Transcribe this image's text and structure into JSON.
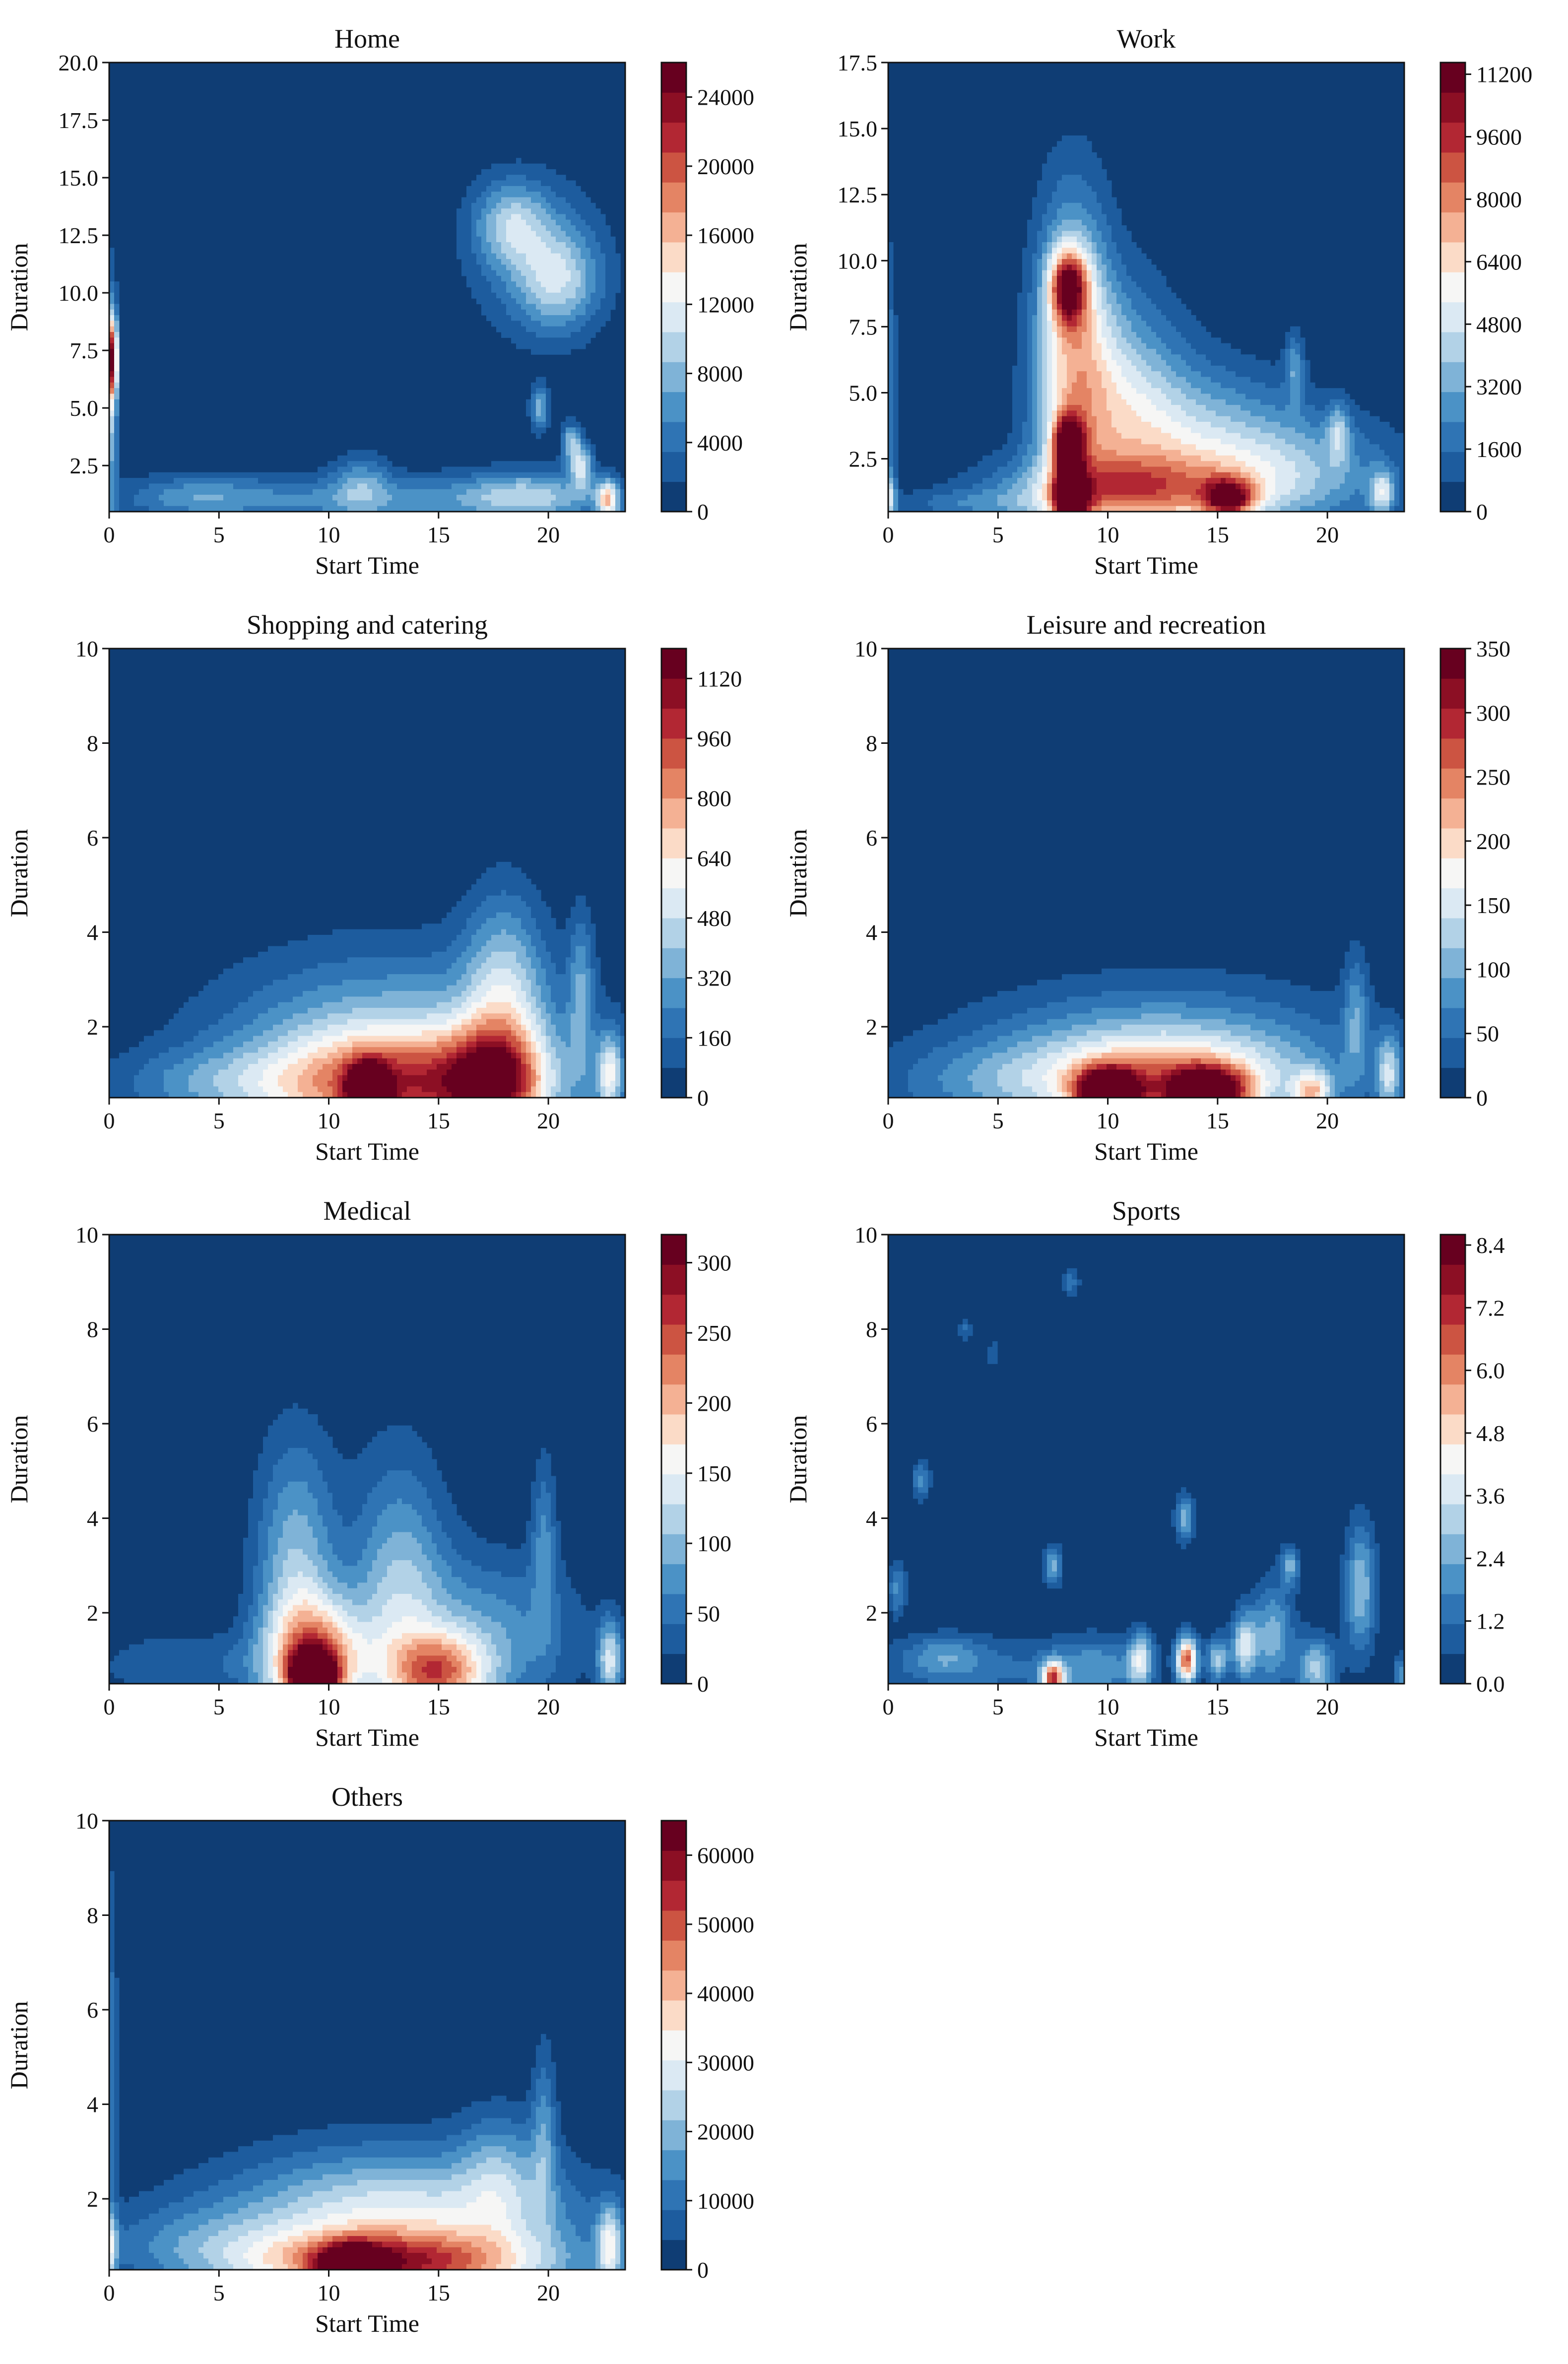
{
  "palette": [
    "#0f3d74",
    "#1d5c9e",
    "#2f74b4",
    "#4b92c6",
    "#7fb3d7",
    "#b2d2e7",
    "#dbe9f3",
    "#f6f6f5",
    "#fbdbc7",
    "#f4b194",
    "#e48464",
    "#cc5442",
    "#b22733",
    "#8c0f24",
    "#67001f"
  ],
  "chart_data": [
    {
      "type": "heatmap",
      "title": "Home",
      "xlabel": "Start Time",
      "ylabel": "Duration",
      "xlim": [
        0,
        23.5
      ],
      "ylim": [
        0.5,
        20
      ],
      "xticks": [
        "0",
        "5",
        "10",
        "15",
        "20"
      ],
      "yticks": [
        "2.5",
        "5.0",
        "7.5",
        "10.0",
        "12.5",
        "15.0",
        "17.5",
        "20.0"
      ],
      "cbar_ticks": [
        "0",
        "4000",
        "8000",
        "12000",
        "16000",
        "20000",
        "24000"
      ],
      "cbar_max": 26000,
      "blobs": [
        {
          "x": 0.1,
          "y": 7.2,
          "sx": 0.2,
          "sy": 1.2,
          "a": 0.68
        },
        {
          "x": 0.1,
          "y": 5.5,
          "sx": 0.2,
          "sy": 3.5,
          "a": 0.35
        },
        {
          "x": 12,
          "y": 1.0,
          "sx": 8,
          "sy": 0.8,
          "a": 0.22
        },
        {
          "x": 4,
          "y": 1.2,
          "sx": 2,
          "sy": 0.6,
          "a": 0.14
        },
        {
          "x": 11.5,
          "y": 1.8,
          "sx": 0.9,
          "sy": 1.0,
          "a": 0.18
        },
        {
          "x": 19,
          "y": 1.2,
          "sx": 2,
          "sy": 0.8,
          "a": 0.25
        },
        {
          "x": 18.3,
          "y": 13.0,
          "sx": 1.2,
          "sy": 1.3,
          "a": 0.28
        },
        {
          "x": 20.5,
          "y": 10.5,
          "sx": 1.3,
          "sy": 1.5,
          "a": 0.28
        },
        {
          "x": 19.5,
          "y": 11.5,
          "sx": 2.2,
          "sy": 2.5,
          "a": 0.17
        },
        {
          "x": 21.5,
          "y": 2.5,
          "sx": 0.35,
          "sy": 0.7,
          "a": 0.4
        },
        {
          "x": 22.7,
          "y": 1.0,
          "sx": 0.35,
          "sy": 0.6,
          "a": 0.5
        },
        {
          "x": 19.6,
          "y": 5.0,
          "sx": 0.3,
          "sy": 0.7,
          "a": 0.3
        },
        {
          "x": 21.0,
          "y": 3.5,
          "sx": 0.3,
          "sy": 0.6,
          "a": 0.3
        }
      ]
    },
    {
      "type": "heatmap",
      "title": "Work",
      "xlabel": "Start Time",
      "ylabel": "Duration",
      "xlim": [
        0,
        23.5
      ],
      "ylim": [
        0.5,
        17.5
      ],
      "xticks": [
        "0",
        "5",
        "10",
        "15",
        "20"
      ],
      "yticks": [
        "2.5",
        "5.0",
        "7.5",
        "10.0",
        "12.5",
        "15.0",
        "17.5"
      ],
      "cbar_ticks": [
        "0",
        "1600",
        "3200",
        "4800",
        "6400",
        "8000",
        "9600",
        "11200"
      ],
      "cbar_max": 11500,
      "blobs": [
        {
          "x": 8.3,
          "y": 1.0,
          "sx": 0.5,
          "sy": 0.6,
          "a": 0.95
        },
        {
          "x": 8.2,
          "y": 3.0,
          "sx": 0.5,
          "sy": 0.8,
          "a": 0.75
        },
        {
          "x": 8.2,
          "y": 9.0,
          "sx": 0.6,
          "sy": 1.0,
          "a": 0.65
        },
        {
          "x": 8.4,
          "y": 7.0,
          "sx": 1.2,
          "sy": 4.0,
          "a": 0.45
        },
        {
          "x": 11,
          "y": 1.2,
          "sx": 4,
          "sy": 1.0,
          "a": 0.5
        },
        {
          "x": 15.5,
          "y": 1.0,
          "sx": 0.8,
          "sy": 0.5,
          "a": 0.6
        },
        {
          "x": 13.5,
          "y": 3.2,
          "sx": 3.5,
          "sy": 2.0,
          "a": 0.32
        },
        {
          "x": 10.5,
          "y": 5.0,
          "sx": 2,
          "sy": 3,
          "a": 0.3
        },
        {
          "x": 18.5,
          "y": 2.0,
          "sx": 3.5,
          "sy": 1.5,
          "a": 0.25
        },
        {
          "x": 3.5,
          "y": 0.8,
          "sx": 2.5,
          "sy": 0.4,
          "a": 0.13
        },
        {
          "x": 0.1,
          "y": 1.0,
          "sx": 0.2,
          "sy": 0.6,
          "a": 0.3
        },
        {
          "x": 0.1,
          "y": 5.0,
          "sx": 0.2,
          "sy": 4.0,
          "a": 0.18
        },
        {
          "x": 22.5,
          "y": 1.2,
          "sx": 0.4,
          "sy": 0.6,
          "a": 0.35
        },
        {
          "x": 20.5,
          "y": 3.5,
          "sx": 0.35,
          "sy": 0.8,
          "a": 0.25
        },
        {
          "x": 18.5,
          "y": 6.0,
          "sx": 0.3,
          "sy": 0.9,
          "a": 0.22
        }
      ]
    },
    {
      "type": "heatmap",
      "title": "Shopping and catering",
      "xlabel": "Start Time",
      "ylabel": "Duration",
      "xlim": [
        0,
        23.5
      ],
      "ylim": [
        0.5,
        10
      ],
      "xticks": [
        "0",
        "5",
        "10",
        "15",
        "20"
      ],
      "yticks": [
        "2",
        "4",
        "6",
        "8",
        "10"
      ],
      "cbar_ticks": [
        "0",
        "160",
        "320",
        "480",
        "640",
        "800",
        "960",
        "1120"
      ],
      "cbar_max": 1200,
      "blobs": [
        {
          "x": 11.8,
          "y": 0.6,
          "sx": 0.6,
          "sy": 0.4,
          "a": 0.92
        },
        {
          "x": 13,
          "y": 0.7,
          "sx": 4.5,
          "sy": 0.8,
          "a": 0.58
        },
        {
          "x": 17.5,
          "y": 0.8,
          "sx": 1.5,
          "sy": 0.8,
          "a": 0.5
        },
        {
          "x": 13,
          "y": 1.6,
          "sx": 5.5,
          "sy": 1.4,
          "a": 0.33
        },
        {
          "x": 18,
          "y": 2.8,
          "sx": 1.3,
          "sy": 1.5,
          "a": 0.3
        },
        {
          "x": 4,
          "y": 0.8,
          "sx": 3,
          "sy": 0.5,
          "a": 0.14
        },
        {
          "x": 22.8,
          "y": 1.0,
          "sx": 0.4,
          "sy": 0.6,
          "a": 0.4
        },
        {
          "x": 21.5,
          "y": 2.8,
          "sx": 0.4,
          "sy": 1.2,
          "a": 0.22
        }
      ]
    },
    {
      "type": "heatmap",
      "title": "Leisure and recreation",
      "xlabel": "Start Time",
      "ylabel": "Duration",
      "xlim": [
        0,
        23.5
      ],
      "ylim": [
        0.5,
        10
      ],
      "xticks": [
        "0",
        "5",
        "10",
        "15",
        "20"
      ],
      "yticks": [
        "2",
        "4",
        "6",
        "8",
        "10"
      ],
      "cbar_ticks": [
        "0",
        "50",
        "100",
        "150",
        "200",
        "250",
        "300",
        "350"
      ],
      "cbar_max": 350,
      "blobs": [
        {
          "x": 10,
          "y": 0.6,
          "sx": 1.0,
          "sy": 0.35,
          "a": 0.9
        },
        {
          "x": 14.5,
          "y": 0.6,
          "sx": 1.2,
          "sy": 0.35,
          "a": 0.88
        },
        {
          "x": 12.5,
          "y": 0.8,
          "sx": 4.5,
          "sy": 0.7,
          "a": 0.5
        },
        {
          "x": 12.5,
          "y": 1.6,
          "sx": 6,
          "sy": 1.0,
          "a": 0.25
        },
        {
          "x": 19.3,
          "y": 0.6,
          "sx": 0.6,
          "sy": 0.3,
          "a": 0.42
        },
        {
          "x": 4,
          "y": 0.8,
          "sx": 3.5,
          "sy": 0.6,
          "a": 0.13
        },
        {
          "x": 22.8,
          "y": 1.0,
          "sx": 0.4,
          "sy": 0.6,
          "a": 0.35
        },
        {
          "x": 21.3,
          "y": 2.3,
          "sx": 0.4,
          "sy": 1.0,
          "a": 0.2
        }
      ]
    },
    {
      "type": "heatmap",
      "title": "Medical",
      "xlabel": "Start Time",
      "ylabel": "Duration",
      "xlim": [
        0,
        23.5
      ],
      "ylim": [
        0.5,
        10
      ],
      "xticks": [
        "0",
        "5",
        "10",
        "15",
        "20"
      ],
      "yticks": [
        "2",
        "4",
        "6",
        "8",
        "10"
      ],
      "cbar_ticks": [
        "0",
        "50",
        "100",
        "150",
        "200",
        "250",
        "300"
      ],
      "cbar_max": 320,
      "blobs": [
        {
          "x": 9.3,
          "y": 0.6,
          "sx": 0.7,
          "sy": 0.4,
          "a": 0.95
        },
        {
          "x": 9.5,
          "y": 1.0,
          "sx": 1.6,
          "sy": 0.9,
          "a": 0.6
        },
        {
          "x": 15,
          "y": 0.7,
          "sx": 1.6,
          "sy": 0.6,
          "a": 0.55
        },
        {
          "x": 8.5,
          "y": 2.8,
          "sx": 1.3,
          "sy": 2.0,
          "a": 0.33
        },
        {
          "x": 13.2,
          "y": 2.5,
          "sx": 1.5,
          "sy": 2.0,
          "a": 0.3
        },
        {
          "x": 17,
          "y": 1.5,
          "sx": 3,
          "sy": 1.2,
          "a": 0.25
        },
        {
          "x": 3.5,
          "y": 0.9,
          "sx": 3,
          "sy": 0.5,
          "a": 0.13
        },
        {
          "x": 22.8,
          "y": 1.0,
          "sx": 0.4,
          "sy": 0.6,
          "a": 0.4
        },
        {
          "x": 19.8,
          "y": 3.5,
          "sx": 0.4,
          "sy": 1.3,
          "a": 0.2
        }
      ]
    },
    {
      "type": "heatmap",
      "title": "Sports",
      "xlabel": "Start Time",
      "ylabel": "Duration",
      "xlim": [
        0,
        23.5
      ],
      "ylim": [
        0.5,
        10
      ],
      "xticks": [
        "0",
        "5",
        "10",
        "15",
        "20"
      ],
      "yticks": [
        "2",
        "4",
        "6",
        "8",
        "10"
      ],
      "cbar_ticks": [
        "0.0",
        "1.2",
        "2.4",
        "3.6",
        "4.8",
        "6.0",
        "7.2",
        "8.4"
      ],
      "cbar_max": 8.6,
      "blobs": [
        {
          "x": 13.6,
          "y": 1.0,
          "sx": 0.35,
          "sy": 0.35,
          "a": 0.75
        },
        {
          "x": 7.5,
          "y": 0.6,
          "sx": 0.35,
          "sy": 0.25,
          "a": 0.7
        },
        {
          "x": 11.5,
          "y": 1.0,
          "sx": 0.4,
          "sy": 0.4,
          "a": 0.4
        },
        {
          "x": 16.2,
          "y": 1.3,
          "sx": 0.4,
          "sy": 0.5,
          "a": 0.4
        },
        {
          "x": 15,
          "y": 1.0,
          "sx": 0.35,
          "sy": 0.35,
          "a": 0.35
        },
        {
          "x": 19.5,
          "y": 0.8,
          "sx": 0.6,
          "sy": 0.5,
          "a": 0.35
        },
        {
          "x": 21.5,
          "y": 2.5,
          "sx": 0.5,
          "sy": 1.0,
          "a": 0.33
        },
        {
          "x": 17.5,
          "y": 1.5,
          "sx": 0.7,
          "sy": 0.8,
          "a": 0.3
        },
        {
          "x": 18.3,
          "y": 3.0,
          "sx": 0.3,
          "sy": 0.3,
          "a": 0.28
        },
        {
          "x": 13.5,
          "y": 4.0,
          "sx": 0.3,
          "sy": 0.35,
          "a": 0.3
        },
        {
          "x": 7.5,
          "y": 3.0,
          "sx": 0.3,
          "sy": 0.3,
          "a": 0.3
        },
        {
          "x": 8.3,
          "y": 9.0,
          "sx": 0.3,
          "sy": 0.2,
          "a": 0.18
        },
        {
          "x": 1.5,
          "y": 4.8,
          "sx": 0.3,
          "sy": 0.3,
          "a": 0.22
        },
        {
          "x": 3.5,
          "y": 8.0,
          "sx": 0.2,
          "sy": 0.2,
          "a": 0.14
        },
        {
          "x": 4.8,
          "y": 7.5,
          "sx": 0.2,
          "sy": 0.2,
          "a": 0.14
        },
        {
          "x": 0.4,
          "y": 2.5,
          "sx": 0.3,
          "sy": 0.4,
          "a": 0.22
        },
        {
          "x": 4,
          "y": 0.8,
          "sx": 3.5,
          "sy": 0.5,
          "a": 0.15
        },
        {
          "x": 9.5,
          "y": 0.8,
          "sx": 1.5,
          "sy": 0.5,
          "a": 0.22
        },
        {
          "x": 2.5,
          "y": 1.1,
          "sx": 1.2,
          "sy": 0.3,
          "a": 0.16
        },
        {
          "x": 23.3,
          "y": 0.7,
          "sx": 0.2,
          "sy": 0.3,
          "a": 0.25
        }
      ]
    },
    {
      "type": "heatmap",
      "title": "Others",
      "xlabel": "Start Time",
      "ylabel": "Duration",
      "xlim": [
        0,
        23.5
      ],
      "ylim": [
        0.5,
        10
      ],
      "xticks": [
        "0",
        "5",
        "10",
        "15",
        "20"
      ],
      "yticks": [
        "2",
        "4",
        "6",
        "8",
        "10"
      ],
      "cbar_ticks": [
        "0",
        "10000",
        "20000",
        "30000",
        "40000",
        "50000",
        "60000"
      ],
      "cbar_max": 65000,
      "blobs": [
        {
          "x": 13,
          "y": 0.6,
          "sx": 4.5,
          "sy": 0.45,
          "a": 0.55
        },
        {
          "x": 11,
          "y": 0.6,
          "sx": 1.0,
          "sy": 0.3,
          "a": 0.62
        },
        {
          "x": 13,
          "y": 1.2,
          "sx": 6,
          "sy": 1.0,
          "a": 0.34
        },
        {
          "x": 13,
          "y": 2.0,
          "sx": 5,
          "sy": 1.0,
          "a": 0.18
        },
        {
          "x": 17.8,
          "y": 2.5,
          "sx": 1.3,
          "sy": 1.0,
          "a": 0.2
        },
        {
          "x": 4,
          "y": 1.0,
          "sx": 3.5,
          "sy": 0.6,
          "a": 0.14
        },
        {
          "x": 0.1,
          "y": 1.0,
          "sx": 0.2,
          "sy": 0.5,
          "a": 0.3
        },
        {
          "x": 0.1,
          "y": 5.0,
          "sx": 0.2,
          "sy": 3.0,
          "a": 0.16
        },
        {
          "x": 22.8,
          "y": 1.0,
          "sx": 0.4,
          "sy": 0.6,
          "a": 0.4
        },
        {
          "x": 19.8,
          "y": 3.5,
          "sx": 0.4,
          "sy": 1.3,
          "a": 0.2
        }
      ]
    }
  ]
}
